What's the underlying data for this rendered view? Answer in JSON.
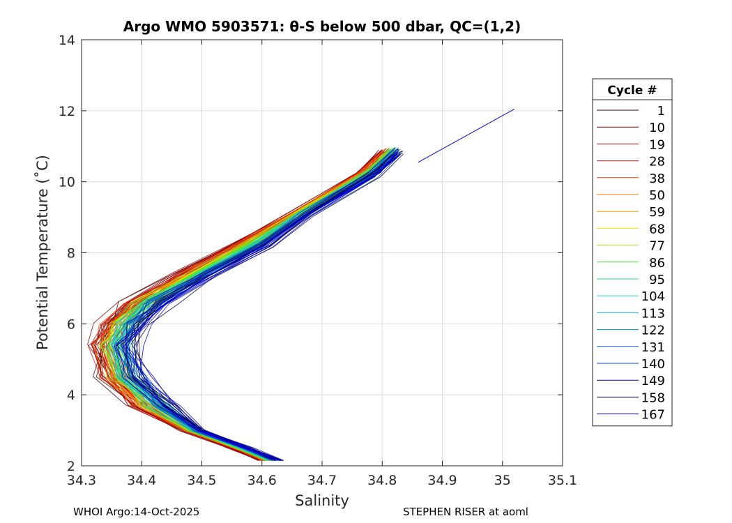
{
  "chart_data": {
    "type": "line",
    "title": "Argo WMO 5903571: θ-S below 500 dbar,  QC=(1,2)",
    "xlabel": "Salinity",
    "ylabel": "Potential Temperature (˚C)",
    "xlim": [
      34.3,
      35.1
    ],
    "ylim": [
      2,
      14
    ],
    "x_ticks": [
      "34.3",
      "34.4",
      "34.5",
      "34.6",
      "34.7",
      "34.8",
      "34.9",
      "35",
      "35.1"
    ],
    "y_ticks": [
      "2",
      "4",
      "6",
      "8",
      "10",
      "12",
      "14"
    ],
    "grid": true,
    "legend": {
      "title": "Cycle #",
      "placement": "right, outside",
      "entries": [
        {
          "label": "1",
          "color": "#3d0000"
        },
        {
          "label": "10",
          "color": "#8a0000"
        },
        {
          "label": "19",
          "color": "#c20000"
        },
        {
          "label": "28",
          "color": "#e60e0e"
        },
        {
          "label": "38",
          "color": "#f03c00"
        },
        {
          "label": "50",
          "color": "#f07000"
        },
        {
          "label": "59",
          "color": "#e8a200"
        },
        {
          "label": "68",
          "color": "#f2e600"
        },
        {
          "label": "77",
          "color": "#9ce600"
        },
        {
          "label": "86",
          "color": "#46e632"
        },
        {
          "label": "95",
          "color": "#1ee678"
        },
        {
          "label": "104",
          "color": "#14d2b4"
        },
        {
          "label": "113",
          "color": "#14b4e6"
        },
        {
          "label": "122",
          "color": "#0a8cc8"
        },
        {
          "label": "131",
          "color": "#0a64c8"
        },
        {
          "label": "140",
          "color": "#0a3cb4"
        },
        {
          "label": "149",
          "color": "#0a0a6e"
        },
        {
          "label": "158",
          "color": "#00003c"
        },
        {
          "label": "167",
          "color": "#0000e6"
        }
      ]
    },
    "profile_shape": {
      "description_free": true,
      "points": [
        {
          "s": 34.6,
          "t": 2.15
        },
        {
          "s": 34.55,
          "t": 2.5
        },
        {
          "s": 34.47,
          "t": 3.0
        },
        {
          "s": 34.39,
          "t": 3.7
        },
        {
          "s": 34.34,
          "t": 4.5
        },
        {
          "s": 34.325,
          "t": 5.4
        },
        {
          "s": 34.34,
          "t": 6.0
        },
        {
          "s": 34.38,
          "t": 6.6
        },
        {
          "s": 34.46,
          "t": 7.4
        },
        {
          "s": 34.55,
          "t": 8.2
        },
        {
          "s": 34.65,
          "t": 9.1
        },
        {
          "s": 34.76,
          "t": 10.2
        },
        {
          "s": 34.8,
          "t": 10.85
        }
      ],
      "cycle_count": 167,
      "highest_point": {
        "s": 35.02,
        "t": 12.05
      }
    }
  },
  "footer": {
    "left": "WHOI Argo:14-Oct-2025",
    "right": "STEPHEN RISER at aoml"
  }
}
